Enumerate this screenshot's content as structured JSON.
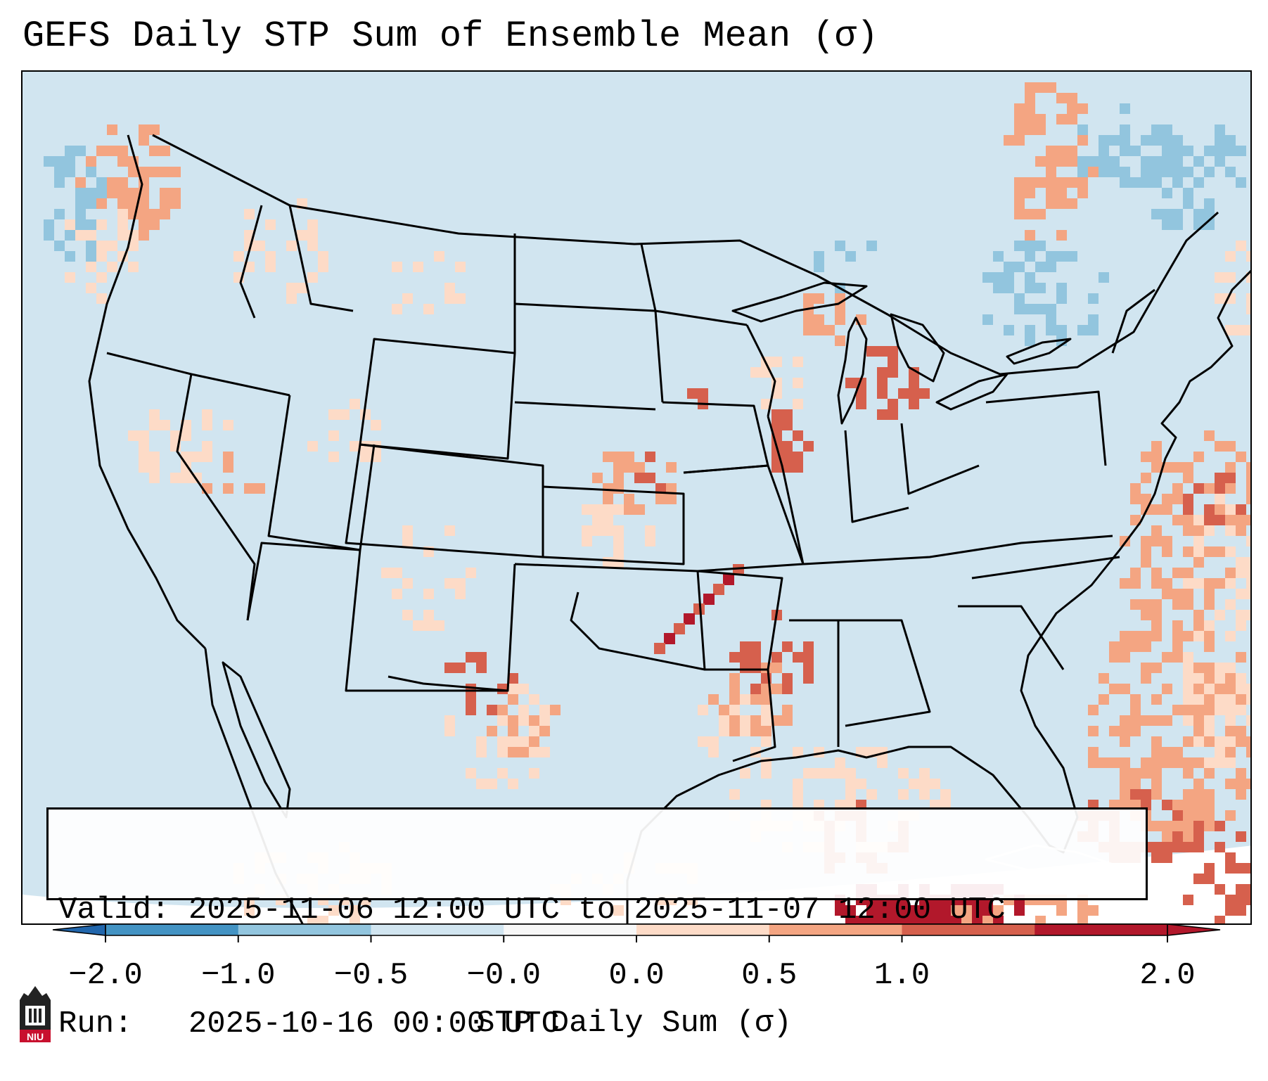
{
  "title": "GEFS Daily STP Sum of Ensemble Mean (σ)",
  "info": {
    "valid_line": "Valid: 2025-11-06 12:00 UTC to 2025-11-07 12:00 UTC",
    "run_line": "Run:   2025-10-16 00:00 UTC"
  },
  "colorbar": {
    "label": "STP Daily Sum (σ)",
    "ticks": [
      "−2.0",
      "−1.0",
      "−0.5",
      "−0.0",
      "0.0",
      "0.5",
      "1.0",
      "2.0"
    ],
    "colors": [
      "#4393c3",
      "#92c5de",
      "#d1e5f0",
      "#f7f7f7",
      "#fddbc7",
      "#f4a582",
      "#d6604d",
      "#b2182b"
    ],
    "extend": "both"
  },
  "logo": {
    "text": "NIU",
    "icon": "niu-tower-logo"
  },
  "map": {
    "region": "CONUS",
    "background_color": "#d1e5f0",
    "hotspots": [
      {
        "name": "Pacific Northwest",
        "level": "0.5"
      },
      {
        "name": "Kansas",
        "level": "1.0"
      },
      {
        "name": "Illinois",
        "level": "1.0"
      },
      {
        "name": "Michigan",
        "level": "1.0"
      },
      {
        "name": "Lower Mississippi Valley",
        "level": "2.0"
      },
      {
        "name": "Western Gulf of Mexico",
        "level": "0.0"
      },
      {
        "name": "Yucatan Channel",
        "level": "2.0"
      },
      {
        "name": "Bahamas",
        "level": "1.0"
      },
      {
        "name": "Western Atlantic",
        "level": "0.5"
      },
      {
        "name": "Quebec",
        "level": "-0.5"
      }
    ]
  }
}
